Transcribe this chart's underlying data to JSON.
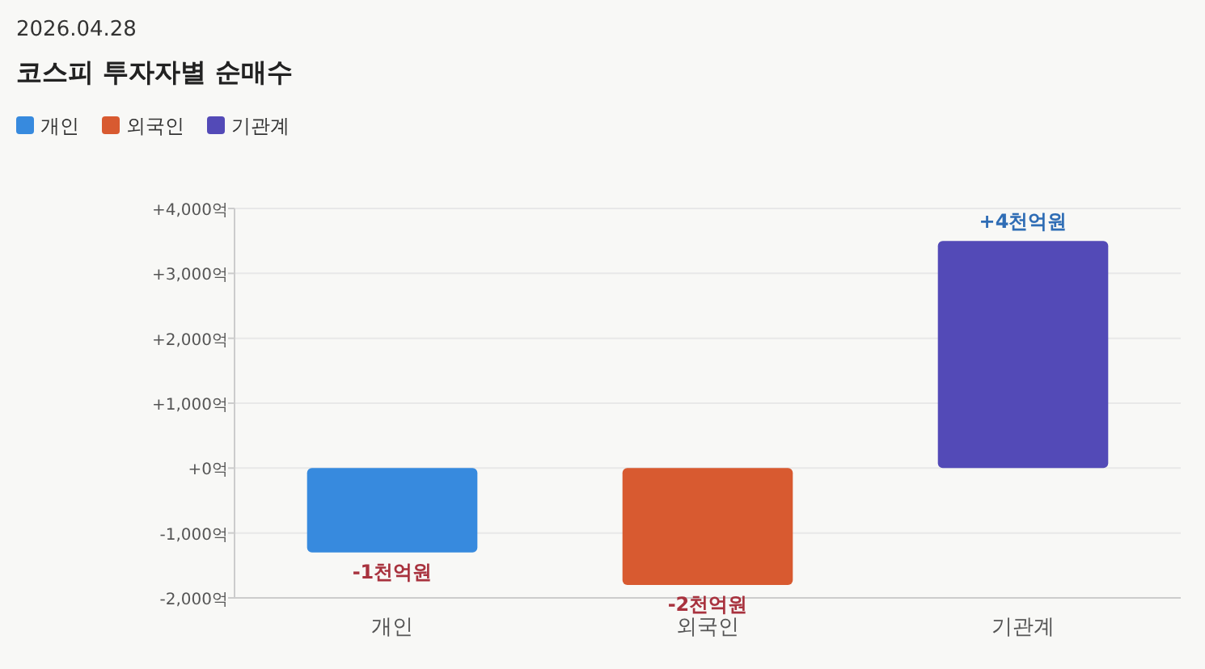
{
  "chart_data": {
    "type": "bar",
    "subtitle": "2026.04.28",
    "title": "코스피 투자자별 순매수",
    "categories": [
      "개인",
      "외국인",
      "기관계"
    ],
    "stacked": true,
    "series": [
      {
        "name": "개인",
        "color": "#378ade",
        "values": [
          -1300,
          null,
          null
        ]
      },
      {
        "name": "외국인",
        "color": "#d85a30",
        "values": [
          null,
          -1800,
          null
        ]
      },
      {
        "name": "기관계",
        "color": "#534ab7",
        "values": [
          null,
          null,
          3500
        ]
      }
    ],
    "annotations": [
      {
        "text": "-1천억원",
        "x": "개인",
        "y": -1300
      },
      {
        "text": "-2천억원",
        "x": "외국인",
        "y": -1800
      },
      {
        "text": "+4천억원",
        "x": "기관계",
        "y": 3500
      }
    ],
    "ylim": [
      -2000,
      4000
    ],
    "yticks": [
      {
        "value": -2000,
        "label": "-2,000억"
      },
      {
        "value": -1000,
        "label": "-1,000억"
      },
      {
        "value": 0,
        "label": "+0억"
      },
      {
        "value": 1000,
        "label": "+1,000억"
      },
      {
        "value": 2000,
        "label": "+2,000억"
      },
      {
        "value": 3000,
        "label": "+3,000억"
      },
      {
        "value": 4000,
        "label": "+4,000억"
      }
    ],
    "grid": "y",
    "legend": "top left"
  }
}
